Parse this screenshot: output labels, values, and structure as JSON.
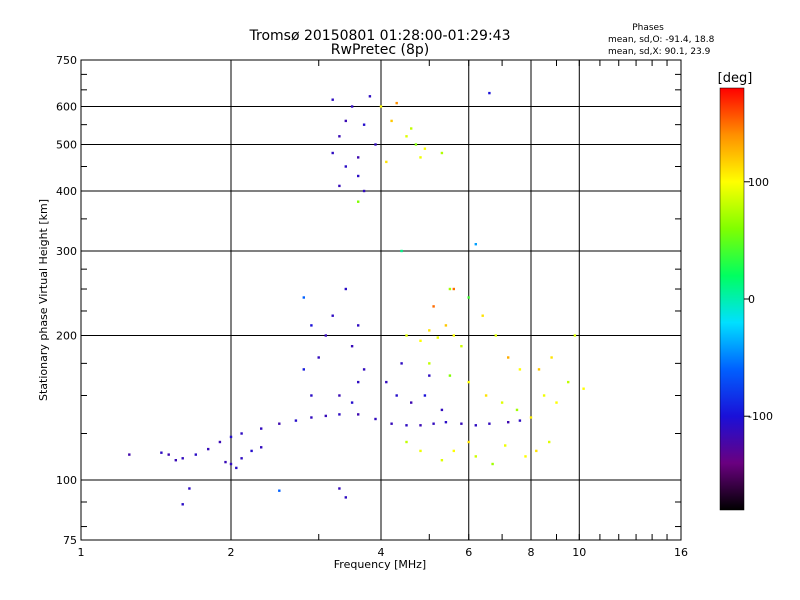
{
  "chart_data": {
    "type": "scatter",
    "title": "Tromsø 20150801 01:28:00-01:29:43",
    "subtitle": "RwPretec (8p)",
    "xlabel": "Frequency [MHz]",
    "ylabel": "Stationary phase Virtual Height [km]",
    "x_scale": "log",
    "y_scale": "log",
    "xlim": [
      1,
      16
    ],
    "ylim": [
      75,
      750
    ],
    "x_ticks": [
      1,
      2,
      4,
      6,
      8,
      10,
      16
    ],
    "x_tick_labels": [
      "1",
      "2",
      "4",
      "6",
      "8",
      "10",
      "16"
    ],
    "y_ticks": [
      75,
      100,
      200,
      300,
      400,
      500,
      600,
      750
    ],
    "y_tick_labels": [
      "75",
      "100",
      "200",
      "300",
      "400",
      "500",
      "600",
      "750"
    ],
    "grid": true,
    "stats": {
      "heading": "Phases",
      "line_o": "mean, sd,O: -91.4, 18.8",
      "line_x": "mean, sd,X:  90.1, 23.9"
    },
    "colorbar": {
      "label": "[deg]",
      "range": [
        -180,
        180
      ],
      "ticks": [
        100,
        0,
        -100
      ],
      "tick_labels": [
        "100",
        "0",
        "-100"
      ],
      "colormap": [
        "#000000",
        "#6a0080",
        "#1a10d8",
        "#0060ff",
        "#00e0ff",
        "#00ff60",
        "#80ff00",
        "#ffff00",
        "#ff9000",
        "#ff0000"
      ]
    },
    "series": [
      {
        "points": [
          [
            1.25,
            113
          ],
          [
            1.45,
            114
          ],
          [
            1.5,
            113
          ],
          [
            1.55,
            110
          ],
          [
            1.6,
            111
          ],
          [
            1.7,
            113
          ],
          [
            1.8,
            116
          ],
          [
            1.9,
            120
          ],
          [
            2.0,
            123
          ],
          [
            2.1,
            125
          ],
          [
            2.3,
            128
          ],
          [
            2.5,
            131
          ],
          [
            2.7,
            133
          ],
          [
            2.9,
            135
          ],
          [
            3.1,
            136
          ],
          [
            3.3,
            137
          ],
          [
            3.6,
            137
          ],
          [
            3.9,
            134
          ],
          [
            4.2,
            131
          ],
          [
            4.5,
            130
          ],
          [
            4.8,
            130
          ],
          [
            5.1,
            131
          ],
          [
            5.4,
            132
          ],
          [
            5.8,
            131
          ],
          [
            6.2,
            130
          ],
          [
            6.6,
            131
          ],
          [
            7.2,
            132
          ],
          [
            7.6,
            133
          ],
          [
            2.0,
            108
          ],
          [
            2.05,
            106
          ],
          [
            1.95,
            109
          ],
          [
            2.1,
            111
          ],
          [
            2.2,
            115
          ],
          [
            2.3,
            117
          ],
          [
            3.2,
            480
          ],
          [
            3.3,
            520
          ],
          [
            3.4,
            450
          ],
          [
            3.5,
            600
          ],
          [
            3.6,
            470
          ],
          [
            3.7,
            550
          ],
          [
            3.8,
            630
          ],
          [
            3.3,
            410
          ],
          [
            3.6,
            430
          ],
          [
            3.9,
            500
          ],
          [
            3.4,
            560
          ],
          [
            3.2,
            620
          ],
          [
            3.7,
            400
          ],
          [
            2.8,
            240
          ],
          [
            2.9,
            210
          ],
          [
            3.0,
            180
          ],
          [
            3.2,
            220
          ],
          [
            3.4,
            250
          ],
          [
            3.5,
            190
          ],
          [
            3.6,
            160
          ],
          [
            3.3,
            150
          ],
          [
            3.5,
            145
          ],
          [
            3.7,
            170
          ],
          [
            2.8,
            170
          ],
          [
            2.9,
            150
          ],
          [
            3.1,
            200
          ],
          [
            3.6,
            210
          ],
          [
            4.1,
            160
          ],
          [
            4.3,
            150
          ],
          [
            4.4,
            175
          ],
          [
            4.6,
            145
          ],
          [
            4.9,
            150
          ],
          [
            5.0,
            165
          ],
          [
            5.3,
            140
          ],
          [
            3.3,
            96
          ],
          [
            3.4,
            92
          ],
          [
            1.65,
            96
          ],
          [
            1.6,
            89
          ],
          [
            2.5,
            95
          ]
        ],
        "phases": [
          -120,
          -110,
          -118,
          -115,
          -112,
          -108,
          -114,
          -116,
          -105,
          -110,
          -112,
          -118,
          -106,
          -112,
          -114,
          -110,
          -118,
          -112,
          -114,
          -110,
          -116,
          -112,
          -108,
          -114,
          -110,
          -112,
          -118,
          -110,
          -112,
          -108,
          -115,
          -110,
          -105,
          -112,
          -110,
          -116,
          -108,
          -112,
          -118,
          -105,
          -110,
          -114,
          -108,
          -112,
          -116,
          -110,
          -112,
          -60,
          -100,
          -112,
          -110,
          -108,
          -114,
          -110,
          -116,
          -105,
          -112,
          -95,
          -108,
          -114,
          -110,
          -112,
          -106,
          -110,
          -118,
          -100,
          -110,
          -112,
          -114,
          -110,
          -110,
          -108,
          -60
        ]
      },
      {
        "points": [
          [
            4.0,
            600
          ],
          [
            4.2,
            560
          ],
          [
            4.5,
            520
          ],
          [
            4.7,
            500
          ],
          [
            4.3,
            610
          ],
          [
            4.9,
            490
          ],
          [
            4.6,
            540
          ],
          [
            4.1,
            460
          ],
          [
            4.8,
            470
          ],
          [
            5.3,
            480
          ],
          [
            4.5,
            200
          ],
          [
            4.8,
            195
          ],
          [
            5.0,
            205
          ],
          [
            5.2,
            198
          ],
          [
            5.4,
            210
          ],
          [
            5.6,
            200
          ],
          [
            5.8,
            190
          ],
          [
            5.1,
            230
          ],
          [
            5.5,
            250
          ],
          [
            6.0,
            240
          ],
          [
            6.4,
            220
          ],
          [
            6.8,
            200
          ],
          [
            7.2,
            180
          ],
          [
            7.6,
            170
          ],
          [
            5.0,
            175
          ],
          [
            5.5,
            165
          ],
          [
            6.0,
            160
          ],
          [
            6.5,
            150
          ],
          [
            7.0,
            145
          ],
          [
            7.5,
            140
          ],
          [
            8.0,
            135
          ],
          [
            8.5,
            150
          ],
          [
            9.0,
            145
          ],
          [
            9.5,
            160
          ],
          [
            8.3,
            170
          ],
          [
            8.8,
            180
          ],
          [
            9.8,
            200
          ],
          [
            10.2,
            155
          ],
          [
            5.3,
            110
          ],
          [
            5.6,
            115
          ],
          [
            6.0,
            120
          ],
          [
            6.2,
            112
          ],
          [
            6.7,
            108
          ],
          [
            7.1,
            118
          ],
          [
            7.8,
            112
          ],
          [
            8.2,
            115
          ],
          [
            8.7,
            120
          ],
          [
            4.5,
            120
          ],
          [
            4.8,
            115
          ],
          [
            3.6,
            380
          ],
          [
            4.4,
            300
          ],
          [
            5.6,
            250
          ],
          [
            6.2,
            310
          ],
          [
            6.6,
            640
          ]
        ],
        "phases": [
          100,
          120,
          90,
          60,
          140,
          100,
          80,
          110,
          95,
          75,
          90,
          100,
          110,
          95,
          120,
          100,
          85,
          150,
          70,
          40,
          110,
          90,
          130,
          100,
          80,
          60,
          100,
          110,
          90,
          70,
          105,
          95,
          100,
          80,
          120,
          110,
          90,
          100,
          90,
          100,
          110,
          85,
          70,
          95,
          100,
          110,
          90,
          80,
          95,
          60,
          10,
          150,
          -40,
          -100
        ]
      }
    ]
  }
}
